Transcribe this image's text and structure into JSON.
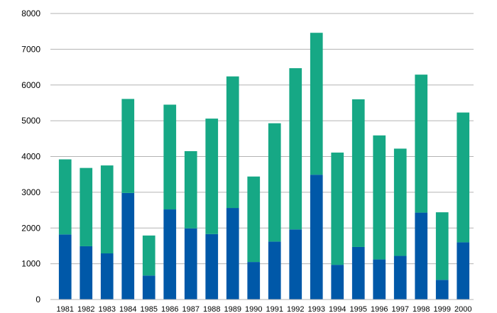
{
  "chart_data": {
    "type": "bar",
    "stacked": true,
    "categories": [
      "1981",
      "1982",
      "1983",
      "1984",
      "1985",
      "1986",
      "1987",
      "1988",
      "1989",
      "1990",
      "1991",
      "1992",
      "1993",
      "1994",
      "1995",
      "1996",
      "1997",
      "1998",
      "1999",
      "2000"
    ],
    "series": [
      {
        "color": "#0058a8",
        "values": [
          1820,
          1490,
          1290,
          2980,
          670,
          2520,
          1990,
          1830,
          2560,
          1050,
          1620,
          1960,
          3490,
          970,
          1470,
          1120,
          1220,
          2430,
          550,
          1600
        ]
      },
      {
        "color": "#16a885",
        "values": [
          2100,
          2190,
          2460,
          2630,
          1120,
          2930,
          2160,
          3230,
          3680,
          2390,
          3310,
          4510,
          3970,
          3140,
          4130,
          3470,
          3000,
          3860,
          1890,
          3630
        ]
      }
    ],
    "ylim": [
      0,
      8000
    ],
    "yticks": [
      0,
      1000,
      2000,
      3000,
      4000,
      5000,
      6000,
      7000,
      8000
    ],
    "grid": true,
    "title": "",
    "xlabel": "",
    "ylabel": ""
  }
}
